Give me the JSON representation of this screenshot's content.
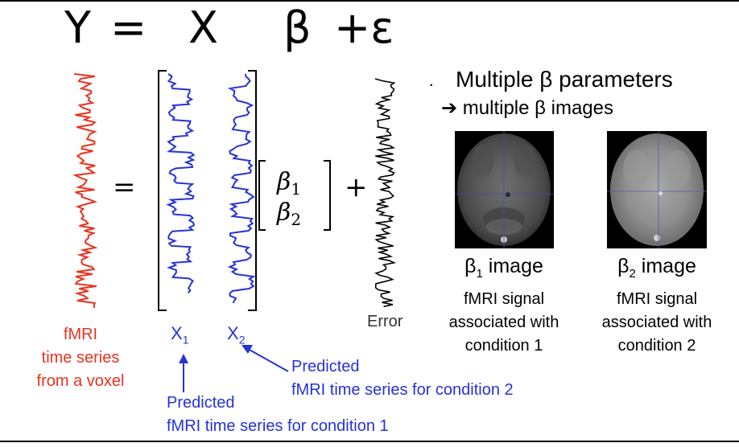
{
  "equation": {
    "y": "Y",
    "equals": "=",
    "x": "X",
    "beta": "β",
    "plus_eps": "+ε"
  },
  "matrix": {
    "equals": "=",
    "plus": "+",
    "beta1": "β",
    "beta1_sub": "1",
    "beta2": "β",
    "beta2_sub": "2"
  },
  "labels": {
    "fmri_line1": "fMRI",
    "fmri_line2": "time series",
    "fmri_line3": "from a voxel",
    "x1": "X",
    "x1_sub": "1",
    "x2": "X",
    "x2_sub": "2",
    "error": "Error",
    "pred2_line1": "Predicted",
    "pred2_line2": "fMRI time series for condition 2",
    "pred1_line1": "Predicted",
    "pred1_line2": "fMRI time series for condition 1"
  },
  "bullet": {
    "mark": "·",
    "line1": "Multiple β parameters",
    "line2": "➔ multiple β images"
  },
  "images": [
    {
      "title": "β",
      "sub": "1",
      "suffix": " image",
      "desc1": "fMRI signal",
      "desc2": "associated with",
      "desc3": "condition 1"
    },
    {
      "title": "β",
      "sub": "2",
      "suffix": " image",
      "desc1": "fMRI signal",
      "desc2": "associated with",
      "desc3": "condition 2"
    }
  ],
  "colors": {
    "red": "#e8331f",
    "blue": "#2533d9",
    "black": "#000000"
  }
}
